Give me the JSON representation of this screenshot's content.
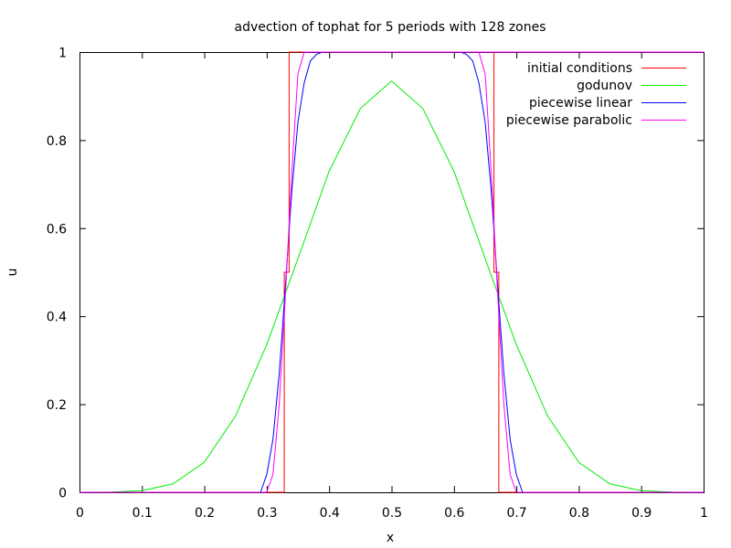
{
  "chart_data": {
    "type": "line",
    "title": "advection of tophat for 5 periods with 128 zones",
    "xlabel": "x",
    "ylabel": "u",
    "xlim": [
      0,
      1
    ],
    "ylim": [
      0,
      1
    ],
    "x_ticks": [
      "0",
      "0.1",
      "0.2",
      "0.3",
      "0.4",
      "0.5",
      "0.6",
      "0.7",
      "0.8",
      "0.9",
      "1"
    ],
    "y_ticks": [
      "0",
      "0.2",
      "0.4",
      "0.6",
      "0.8",
      "1"
    ],
    "grid": false,
    "legend_position": "top-right",
    "series": [
      {
        "name": "initial conditions",
        "color": "#ff0000",
        "x": [
          0,
          0.3281,
          0.3281,
          0.3359,
          0.3359,
          0.6641,
          0.6641,
          0.6719,
          0.6719,
          1
        ],
        "y": [
          0,
          0,
          0.5,
          0.5,
          1,
          1,
          0.5,
          0.5,
          0,
          0
        ]
      },
      {
        "name": "godunov",
        "color": "#00ee00",
        "x": [
          0,
          0.05,
          0.1,
          0.15,
          0.2,
          0.25,
          0.3,
          0.35,
          0.4,
          0.45,
          0.5,
          0.55,
          0.6,
          0.65,
          0.7,
          0.75,
          0.8,
          0.85,
          0.9,
          0.95,
          1
        ],
        "y": [
          0,
          0.0006,
          0.0038,
          0.0191,
          0.0681,
          0.1734,
          0.3352,
          0.5305,
          0.7292,
          0.8717,
          0.934,
          0.8717,
          0.7292,
          0.5305,
          0.3352,
          0.1734,
          0.0681,
          0.0191,
          0.0038,
          0.0006,
          0
        ]
      },
      {
        "name": "piecewise linear",
        "color": "#0000ff",
        "x": [
          0,
          0.29,
          0.3,
          0.31,
          0.32,
          0.33,
          0.34,
          0.35,
          0.36,
          0.37,
          0.38,
          0.39,
          1.0
        ],
        "y": [
          0,
          0,
          0.04,
          0.12,
          0.27,
          0.47,
          0.68,
          0.84,
          0.93,
          0.98,
          0.995,
          1,
          1
        ],
        "mirror": true
      },
      {
        "name": "piecewise parabolic",
        "color": "#ff00ff",
        "x": [
          0,
          0.3,
          0.31,
          0.32,
          0.33,
          0.34,
          0.35,
          0.36,
          0.37,
          1.0
        ],
        "y": [
          0,
          0,
          0.04,
          0.2,
          0.45,
          0.72,
          0.95,
          1,
          1,
          1
        ],
        "mirror": true
      }
    ]
  }
}
